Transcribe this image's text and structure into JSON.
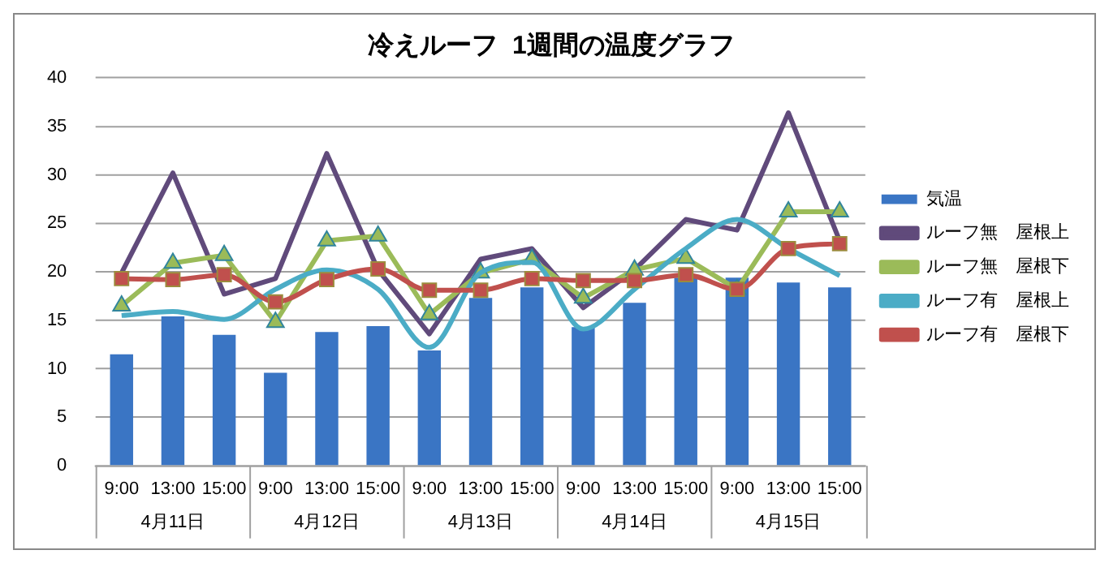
{
  "chart_data": {
    "type": "bar",
    "title": "冷えルーフ  1週間の温度グラフ",
    "categories": [
      "9:00",
      "13:00",
      "15:00",
      "9:00",
      "13:00",
      "15:00",
      "9:00",
      "13:00",
      "15:00",
      "9:00",
      "13:00",
      "15:00",
      "9:00",
      "13:00",
      "15:00"
    ],
    "annotations": [
      "4月11日",
      "4月12日",
      "4月13日",
      "4月14日",
      "4月15日"
    ],
    "series": [
      {
        "name": "気温",
        "color": "#3a75c4",
        "values": [
          11.5,
          15.4,
          13.5,
          9.6,
          13.8,
          14.4,
          11.9,
          17.3,
          18.4,
          14.3,
          16.8,
          19.4,
          19.4,
          18.9,
          18.4
        ]
      },
      {
        "name": "ルーフ無　屋根上",
        "type": "line",
        "color": "#604a7b",
        "marker": "none",
        "values": [
          19.9,
          30.2,
          17.7,
          19.3,
          32.2,
          20.2,
          13.6,
          21.3,
          22.4,
          16.3,
          20.2,
          25.4,
          24.3,
          36.4,
          23.2
        ]
      },
      {
        "name": "ルーフ無　屋根下",
        "type": "line",
        "color": "#9bbb59",
        "marker": "triangle",
        "values": [
          16.5,
          20.9,
          21.7,
          14.8,
          23.2,
          23.7,
          15.6,
          19.9,
          21.3,
          17.3,
          20.2,
          21.4,
          18.2,
          26.2,
          26.2
        ]
      },
      {
        "name": "ルーフ有　屋根上",
        "type": "line",
        "color": "#4bacc6",
        "marker": "none",
        "values": [
          15.5,
          15.9,
          15.1,
          18.2,
          20.2,
          18.2,
          12.2,
          19.9,
          21.0,
          14.1,
          18.2,
          22.4,
          25.4,
          22.4,
          19.6
        ]
      },
      {
        "name": "ルーフ有　屋根下",
        "type": "line",
        "color": "#c0504d",
        "marker": "square",
        "values": [
          19.3,
          19.2,
          19.7,
          16.9,
          19.2,
          20.3,
          18.1,
          18.1,
          19.3,
          19.1,
          19.1,
          19.7,
          18.2,
          22.4,
          22.9
        ]
      }
    ],
    "ylim": [
      0,
      40
    ],
    "yticks": [
      0,
      5,
      10,
      15,
      20,
      25,
      30,
      35,
      40
    ],
    "grid": "y",
    "legend": "right"
  }
}
